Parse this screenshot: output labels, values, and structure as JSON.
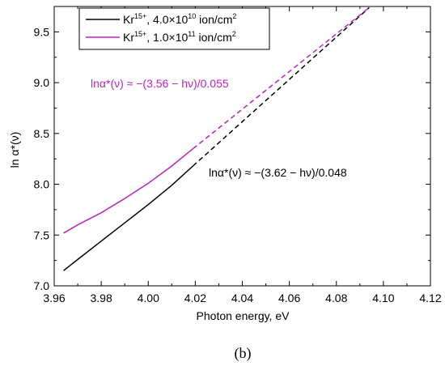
{
  "chart_data": {
    "type": "line",
    "xlabel": "Photon energy, eV",
    "ylabel": "ln α*(ν)",
    "xlim": [
      3.96,
      4.12
    ],
    "ylim": [
      7.0,
      9.75
    ],
    "x_ticks": [
      "3.96",
      "3.98",
      "4.00",
      "4.02",
      "4.04",
      "4.06",
      "4.08",
      "4.10",
      "4.12"
    ],
    "y_ticks": [
      "7.0",
      "7.5",
      "8.0",
      "8.5",
      "9.0",
      "9.5"
    ],
    "panel_label": "(b)",
    "series": [
      {
        "legend_base": "Kr",
        "legend_sup": "15+",
        "legend_mid": ", 4.0×10",
        "legend_exp": "10",
        "legend_unit": " ion/cm",
        "legend_unit_sup": "2",
        "color": "#000000",
        "solid_x": [
          3.964,
          3.97,
          3.98,
          3.99,
          4.0,
          4.01,
          4.019
        ],
        "solid_y": [
          7.15,
          7.26,
          7.44,
          7.62,
          7.8,
          7.99,
          8.18
        ],
        "dashed_x": [
          4.019,
          4.094
        ],
        "dashed_y": [
          8.18,
          9.74
        ],
        "annotation": "lnα*(ν) ≈ −(3.62 − hν)/0.048"
      },
      {
        "legend_base": "Kr",
        "legend_sup": "15+",
        "legend_mid": ", 1.0×10",
        "legend_exp": "11",
        "legend_unit": " ion/cm",
        "legend_unit_sup": "2",
        "color": "#c020c0",
        "solid_x": [
          3.964,
          3.97,
          3.98,
          3.99,
          4.0,
          4.01,
          4.019
        ],
        "solid_y": [
          7.52,
          7.6,
          7.72,
          7.86,
          8.01,
          8.18,
          8.35
        ],
        "dashed_x": [
          4.019,
          4.094
        ],
        "dashed_y": [
          8.35,
          9.74
        ],
        "annotation": "lnα*(ν) ≈ −(3.56 − hν)/0.055"
      }
    ]
  }
}
